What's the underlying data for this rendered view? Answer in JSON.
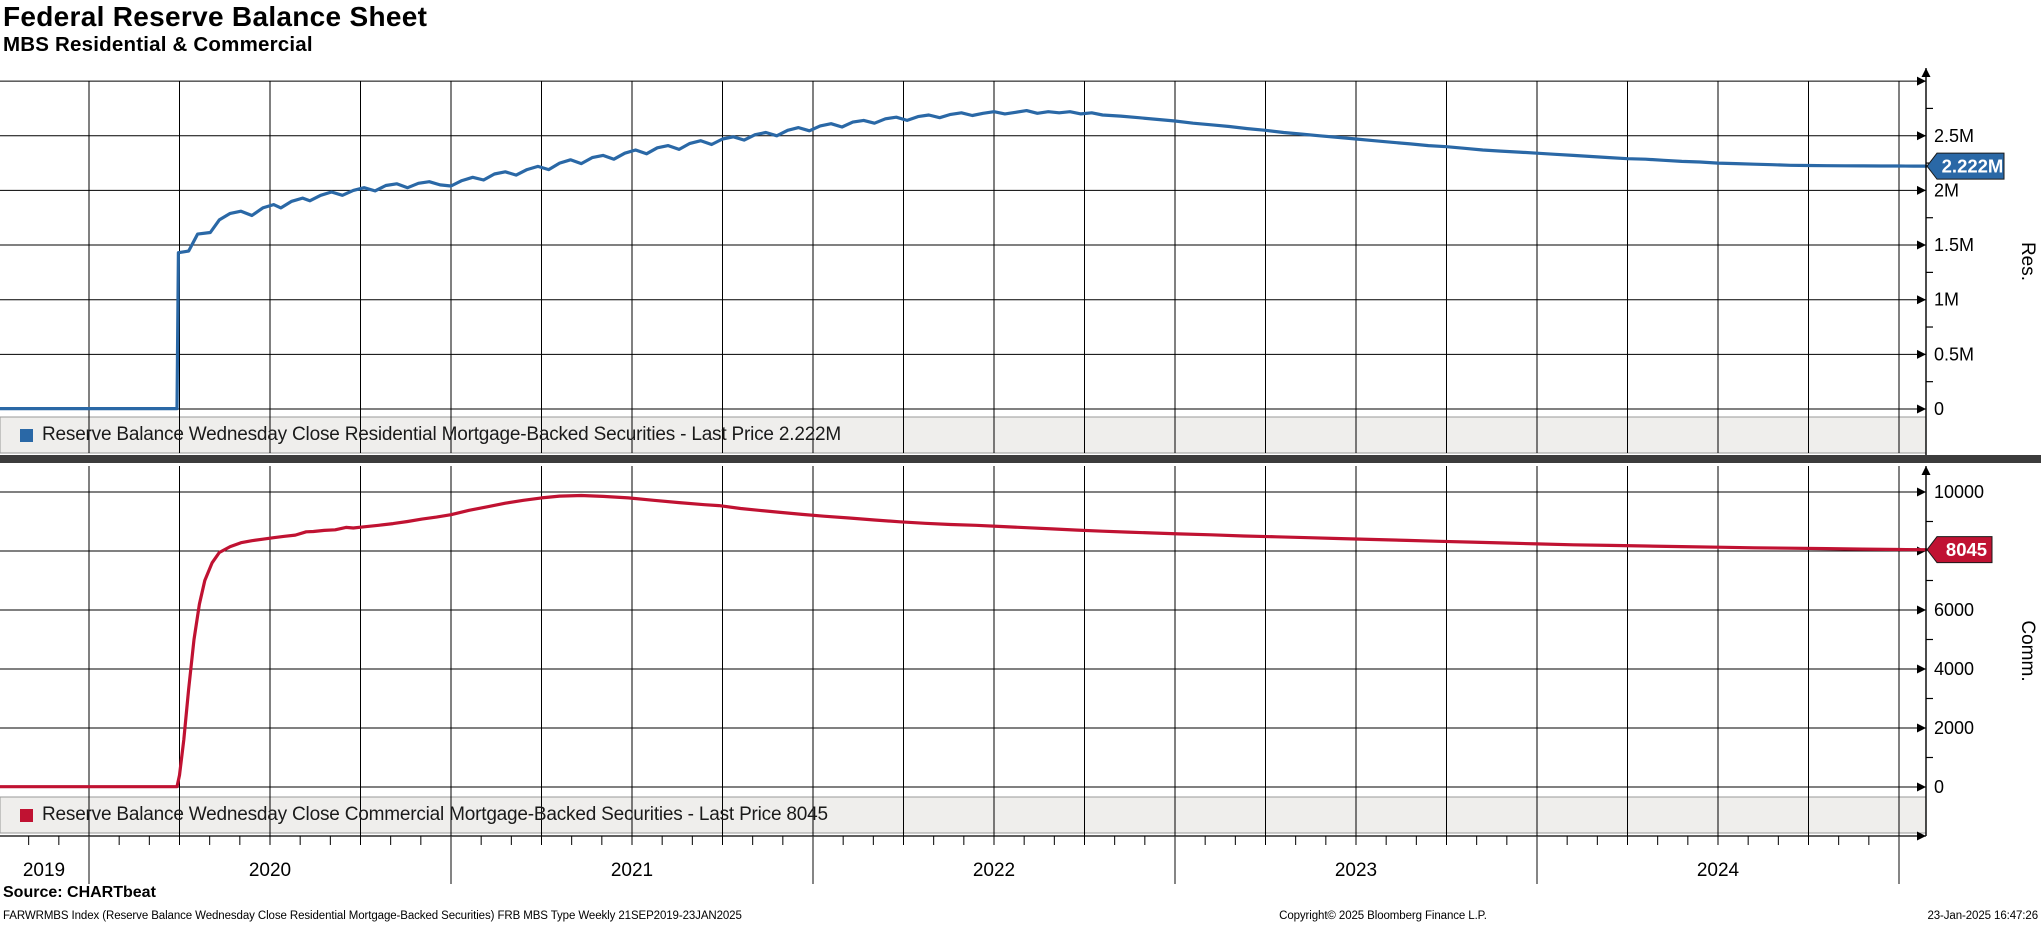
{
  "header": {
    "title": "Federal Reserve Balance Sheet",
    "subtitle": "MBS Residential & Commercial"
  },
  "source_line": "Source: CHARTbeat",
  "footer": {
    "left": "FARWRMBS Index (Reserve Balance Wednesday Close Residential Mortgage-Backed Securities) FRB MBS Type  Weekly 21SEP2019-23JAN2025",
    "center": "Copyright© 2025 Bloomberg Finance L.P.",
    "right": "23-Jan-2025 16:47:26"
  },
  "colors": {
    "residential": "#2a68a6",
    "commercial": "#c01232",
    "grid": "#000000",
    "separator_bar": "#3c3c3c",
    "legend_bg": "#efeeec",
    "legend_border": "#999999",
    "flag_text": "#ffffff"
  },
  "x_axis": {
    "t_start": 2019.754,
    "t_end": 2025.075,
    "year_labels": [
      "2019",
      "2020",
      "2021",
      "2022",
      "2023",
      "2024"
    ],
    "year_boundaries": [
      2020,
      2021,
      2022,
      2023,
      2024,
      2025
    ],
    "range_text": "21SEP2019-23JAN2025"
  },
  "chart_data": [
    {
      "type": "line",
      "panel": "top",
      "series_name": "Reserve Balance Wednesday Close Residential Mortgage-Backed Securities",
      "legend": "Reserve Balance Wednesday Close Residential Mortgage-Backed Securities - Last Price 2.222M",
      "axis_label": "Res.",
      "unit": "millions (M = 1,000,000)",
      "color": "#2a68a6",
      "ylim": [
        0,
        3.0
      ],
      "yticks": [
        [
          0,
          "0"
        ],
        [
          0.5,
          "0.5M"
        ],
        [
          1,
          "1M"
        ],
        [
          1.5,
          "1.5M"
        ],
        [
          2,
          "2M"
        ],
        [
          2.5,
          "2.5M"
        ],
        [
          3,
          ""
        ]
      ],
      "minor_step": 0.25,
      "last_price": 2.222,
      "last_price_label": "2.222M",
      "points": [
        [
          2019.754,
          0.004
        ],
        [
          2020.243,
          0.004
        ],
        [
          2020.247,
          1.43
        ],
        [
          2020.275,
          1.445
        ],
        [
          2020.3,
          1.6
        ],
        [
          2020.335,
          1.615
        ],
        [
          2020.36,
          1.73
        ],
        [
          2020.39,
          1.79
        ],
        [
          2020.42,
          1.81
        ],
        [
          2020.45,
          1.77
        ],
        [
          2020.48,
          1.84
        ],
        [
          2020.51,
          1.87
        ],
        [
          2020.53,
          1.84
        ],
        [
          2020.56,
          1.9
        ],
        [
          2020.59,
          1.93
        ],
        [
          2020.61,
          1.905
        ],
        [
          2020.64,
          1.955
        ],
        [
          2020.67,
          1.985
        ],
        [
          2020.7,
          1.955
        ],
        [
          2020.73,
          2.0
        ],
        [
          2020.76,
          2.025
        ],
        [
          2020.79,
          1.995
        ],
        [
          2020.82,
          2.045
        ],
        [
          2020.85,
          2.06
        ],
        [
          2020.88,
          2.025
        ],
        [
          2020.91,
          2.065
        ],
        [
          2020.94,
          2.08
        ],
        [
          2020.97,
          2.05
        ],
        [
          2021.0,
          2.04
        ],
        [
          2021.03,
          2.09
        ],
        [
          2021.06,
          2.12
        ],
        [
          2021.09,
          2.095
        ],
        [
          2021.12,
          2.15
        ],
        [
          2021.15,
          2.17
        ],
        [
          2021.18,
          2.14
        ],
        [
          2021.21,
          2.19
        ],
        [
          2021.24,
          2.22
        ],
        [
          2021.27,
          2.19
        ],
        [
          2021.3,
          2.25
        ],
        [
          2021.33,
          2.28
        ],
        [
          2021.36,
          2.245
        ],
        [
          2021.39,
          2.3
        ],
        [
          2021.42,
          2.32
        ],
        [
          2021.45,
          2.285
        ],
        [
          2021.48,
          2.34
        ],
        [
          2021.51,
          2.37
        ],
        [
          2021.54,
          2.335
        ],
        [
          2021.57,
          2.39
        ],
        [
          2021.6,
          2.41
        ],
        [
          2021.63,
          2.375
        ],
        [
          2021.66,
          2.43
        ],
        [
          2021.69,
          2.455
        ],
        [
          2021.72,
          2.42
        ],
        [
          2021.75,
          2.47
        ],
        [
          2021.78,
          2.49
        ],
        [
          2021.81,
          2.46
        ],
        [
          2021.84,
          2.51
        ],
        [
          2021.87,
          2.53
        ],
        [
          2021.9,
          2.5
        ],
        [
          2021.93,
          2.55
        ],
        [
          2021.96,
          2.575
        ],
        [
          2021.99,
          2.545
        ],
        [
          2022.02,
          2.59
        ],
        [
          2022.05,
          2.61
        ],
        [
          2022.08,
          2.58
        ],
        [
          2022.11,
          2.625
        ],
        [
          2022.14,
          2.64
        ],
        [
          2022.17,
          2.615
        ],
        [
          2022.2,
          2.655
        ],
        [
          2022.23,
          2.67
        ],
        [
          2022.26,
          2.64
        ],
        [
          2022.29,
          2.675
        ],
        [
          2022.32,
          2.69
        ],
        [
          2022.35,
          2.665
        ],
        [
          2022.38,
          2.695
        ],
        [
          2022.41,
          2.71
        ],
        [
          2022.44,
          2.685
        ],
        [
          2022.47,
          2.705
        ],
        [
          2022.5,
          2.72
        ],
        [
          2022.53,
          2.7
        ],
        [
          2022.56,
          2.715
        ],
        [
          2022.59,
          2.73
        ],
        [
          2022.62,
          2.705
        ],
        [
          2022.65,
          2.72
        ],
        [
          2022.68,
          2.71
        ],
        [
          2022.71,
          2.72
        ],
        [
          2022.74,
          2.7
        ],
        [
          2022.77,
          2.71
        ],
        [
          2022.8,
          2.69
        ],
        [
          2022.85,
          2.68
        ],
        [
          2022.9,
          2.665
        ],
        [
          2022.95,
          2.65
        ],
        [
          2023.0,
          2.635
        ],
        [
          2023.05,
          2.615
        ],
        [
          2023.1,
          2.6
        ],
        [
          2023.15,
          2.585
        ],
        [
          2023.2,
          2.565
        ],
        [
          2023.25,
          2.55
        ],
        [
          2023.3,
          2.53
        ],
        [
          2023.35,
          2.515
        ],
        [
          2023.4,
          2.5
        ],
        [
          2023.45,
          2.485
        ],
        [
          2023.5,
          2.47
        ],
        [
          2023.55,
          2.455
        ],
        [
          2023.6,
          2.44
        ],
        [
          2023.65,
          2.425
        ],
        [
          2023.7,
          2.41
        ],
        [
          2023.75,
          2.4
        ],
        [
          2023.8,
          2.385
        ],
        [
          2023.85,
          2.37
        ],
        [
          2023.9,
          2.36
        ],
        [
          2023.95,
          2.35
        ],
        [
          2024.0,
          2.34
        ],
        [
          2024.05,
          2.33
        ],
        [
          2024.1,
          2.32
        ],
        [
          2024.15,
          2.31
        ],
        [
          2024.2,
          2.3
        ],
        [
          2024.25,
          2.29
        ],
        [
          2024.3,
          2.285
        ],
        [
          2024.35,
          2.275
        ],
        [
          2024.4,
          2.265
        ],
        [
          2024.45,
          2.26
        ],
        [
          2024.5,
          2.25
        ],
        [
          2024.55,
          2.245
        ],
        [
          2024.6,
          2.24
        ],
        [
          2024.65,
          2.235
        ],
        [
          2024.7,
          2.23
        ],
        [
          2024.75,
          2.228
        ],
        [
          2024.8,
          2.226
        ],
        [
          2024.85,
          2.2255
        ],
        [
          2024.9,
          2.2245
        ],
        [
          2024.95,
          2.2235
        ],
        [
          2025.0,
          2.223
        ],
        [
          2025.04,
          2.2225
        ],
        [
          2025.075,
          2.222
        ]
      ]
    },
    {
      "type": "line",
      "panel": "bottom",
      "series_name": "Reserve Balance Wednesday Close Commercial Mortgage-Backed Securities",
      "legend": "Reserve Balance Wednesday Close Commercial Mortgage-Backed Securities - Last Price 8045",
      "axis_label": "Comm.",
      "unit": "raw",
      "color": "#c01232",
      "ylim": [
        0,
        11000
      ],
      "yticks": [
        [
          0,
          "0"
        ],
        [
          2000,
          "2000"
        ],
        [
          4000,
          "4000"
        ],
        [
          6000,
          "6000"
        ],
        [
          8000,
          "8000"
        ],
        [
          10000,
          "10000"
        ]
      ],
      "minor_step": 1000,
      "last_price": 8045,
      "last_price_label": "8045",
      "points": [
        [
          2019.754,
          10
        ],
        [
          2020.243,
          10
        ],
        [
          2020.25,
          400
        ],
        [
          2020.262,
          1600
        ],
        [
          2020.275,
          3300
        ],
        [
          2020.29,
          5000
        ],
        [
          2020.305,
          6200
        ],
        [
          2020.32,
          7000
        ],
        [
          2020.34,
          7600
        ],
        [
          2020.36,
          7950
        ],
        [
          2020.39,
          8150
        ],
        [
          2020.42,
          8280
        ],
        [
          2020.45,
          8350
        ],
        [
          2020.48,
          8400
        ],
        [
          2020.51,
          8450
        ],
        [
          2020.54,
          8500
        ],
        [
          2020.57,
          8540
        ],
        [
          2020.6,
          8650
        ],
        [
          2020.62,
          8660
        ],
        [
          2020.65,
          8700
        ],
        [
          2020.68,
          8720
        ],
        [
          2020.71,
          8800
        ],
        [
          2020.73,
          8780
        ],
        [
          2020.76,
          8820
        ],
        [
          2020.8,
          8870
        ],
        [
          2020.84,
          8930
        ],
        [
          2020.88,
          9000
        ],
        [
          2020.92,
          9080
        ],
        [
          2020.96,
          9150
        ],
        [
          2021.0,
          9230
        ],
        [
          2021.05,
          9380
        ],
        [
          2021.1,
          9500
        ],
        [
          2021.15,
          9620
        ],
        [
          2021.2,
          9720
        ],
        [
          2021.25,
          9800
        ],
        [
          2021.3,
          9860
        ],
        [
          2021.36,
          9880
        ],
        [
          2021.42,
          9850
        ],
        [
          2021.49,
          9800
        ],
        [
          2021.56,
          9720
        ],
        [
          2021.63,
          9640
        ],
        [
          2021.7,
          9570
        ],
        [
          2021.74,
          9540
        ],
        [
          2021.8,
          9440
        ],
        [
          2021.85,
          9380
        ],
        [
          2021.91,
          9310
        ],
        [
          2021.97,
          9240
        ],
        [
          2022.03,
          9180
        ],
        [
          2022.1,
          9120
        ],
        [
          2022.17,
          9050
        ],
        [
          2022.24,
          8990
        ],
        [
          2022.31,
          8940
        ],
        [
          2022.38,
          8900
        ],
        [
          2022.45,
          8870
        ],
        [
          2022.52,
          8830
        ],
        [
          2022.59,
          8790
        ],
        [
          2022.66,
          8750
        ],
        [
          2022.73,
          8710
        ],
        [
          2022.8,
          8670
        ],
        [
          2022.87,
          8640
        ],
        [
          2022.94,
          8610
        ],
        [
          2023.01,
          8580
        ],
        [
          2023.1,
          8550
        ],
        [
          2023.19,
          8510
        ],
        [
          2023.28,
          8480
        ],
        [
          2023.37,
          8450
        ],
        [
          2023.46,
          8420
        ],
        [
          2023.55,
          8390
        ],
        [
          2023.64,
          8360
        ],
        [
          2023.73,
          8330
        ],
        [
          2023.82,
          8300
        ],
        [
          2023.91,
          8270
        ],
        [
          2024.0,
          8240
        ],
        [
          2024.1,
          8210
        ],
        [
          2024.2,
          8190
        ],
        [
          2024.3,
          8170
        ],
        [
          2024.4,
          8150
        ],
        [
          2024.5,
          8130
        ],
        [
          2024.6,
          8110
        ],
        [
          2024.7,
          8095
        ],
        [
          2024.8,
          8080
        ],
        [
          2024.9,
          8065
        ],
        [
          2025.0,
          8052
        ],
        [
          2025.075,
          8045
        ]
      ]
    }
  ]
}
